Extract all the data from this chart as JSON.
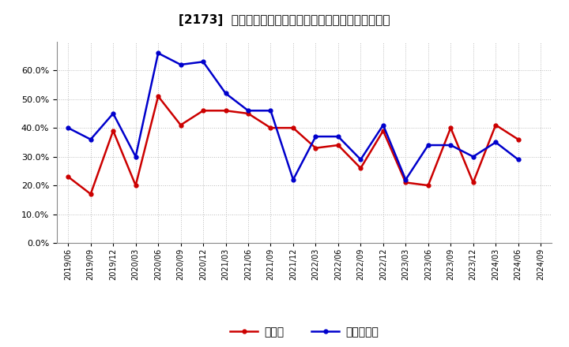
{
  "title": "[2173]  現顔金、有利子負債の総資産に対する比率の推移",
  "x_labels": [
    "2019/06",
    "2019/09",
    "2019/12",
    "2020/03",
    "2020/06",
    "2020/09",
    "2020/12",
    "2021/03",
    "2021/06",
    "2021/09",
    "2021/12",
    "2022/03",
    "2022/06",
    "2022/09",
    "2022/12",
    "2023/03",
    "2023/06",
    "2023/09",
    "2023/12",
    "2024/03",
    "2024/06",
    "2024/09"
  ],
  "cash_values": [
    0.23,
    0.17,
    0.39,
    0.2,
    0.51,
    0.41,
    0.46,
    0.46,
    0.45,
    0.4,
    0.4,
    0.33,
    0.34,
    0.26,
    0.39,
    0.21,
    0.2,
    0.4,
    0.21,
    0.41,
    0.36,
    null
  ],
  "debt_values": [
    0.4,
    0.36,
    0.45,
    0.3,
    0.66,
    0.62,
    0.63,
    0.52,
    0.46,
    0.46,
    0.22,
    0.37,
    0.37,
    0.29,
    0.41,
    0.22,
    0.34,
    0.34,
    0.3,
    0.35,
    0.29,
    null
  ],
  "cash_color": "#cc0000",
  "debt_color": "#0000cc",
  "legend_cash": "現顔金",
  "legend_debt": "有利子負債",
  "ylim": [
    0.0,
    0.7
  ],
  "yticks": [
    0.0,
    0.1,
    0.2,
    0.3,
    0.4,
    0.5,
    0.6
  ],
  "background_color": "#ffffff",
  "grid_color": "#aaaaaa"
}
